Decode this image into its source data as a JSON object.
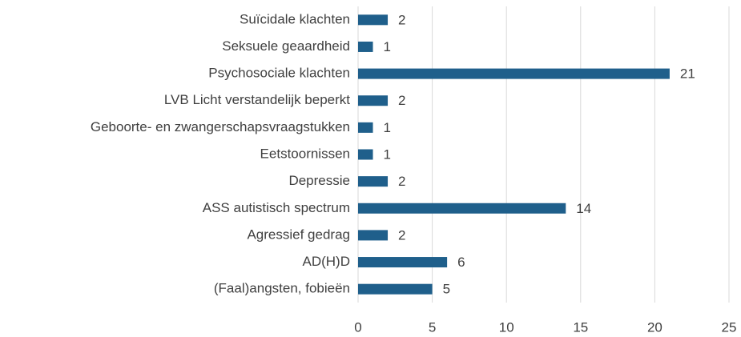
{
  "chart_data": {
    "type": "bar",
    "orientation": "horizontal",
    "categories": [
      "Suïcidale klachten",
      "Seksuele geaardheid",
      "Psychosociale klachten",
      "LVB Licht verstandelijk beperkt",
      "Geboorte- en zwangerschapsvraagstukken",
      "Eetstoornissen",
      "Depressie",
      "ASS autistisch spectrum",
      "Agressief gedrag",
      "AD(H)D",
      "(Faal)angsten, fobieën"
    ],
    "values": [
      2,
      1,
      21,
      2,
      1,
      1,
      2,
      14,
      2,
      6,
      5
    ],
    "color": "#1f5f8b",
    "xlim": [
      0,
      25
    ],
    "xticks": [
      0,
      5,
      10,
      15,
      20,
      25
    ],
    "grid": true
  }
}
